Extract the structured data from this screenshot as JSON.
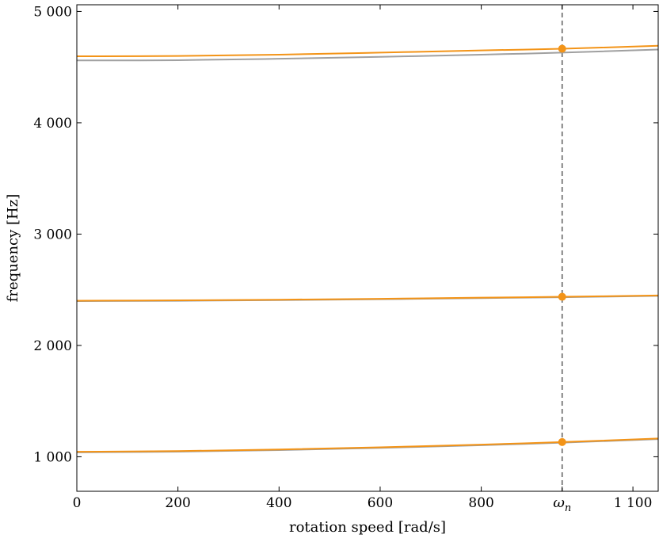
{
  "chart_data": {
    "type": "line",
    "xlabel": "rotation speed [rad/s]",
    "ylabel": "frequency [Hz]",
    "xlim": [
      0,
      1150
    ],
    "ylim": [
      690,
      5060
    ],
    "x_ticks": [
      {
        "value": 0,
        "label": "0"
      },
      {
        "value": 200,
        "label": "200"
      },
      {
        "value": 400,
        "label": "400"
      },
      {
        "value": 600,
        "label": "600"
      },
      {
        "value": 800,
        "label": "800"
      },
      {
        "value": 960,
        "label": "ω",
        "subscript": "n"
      },
      {
        "value": 1100,
        "label": "1 100"
      }
    ],
    "y_ticks": [
      {
        "value": 1000,
        "label": "1 000"
      },
      {
        "value": 2000,
        "label": "2 000"
      },
      {
        "value": 3000,
        "label": "3 000"
      },
      {
        "value": 4000,
        "label": "4 000"
      },
      {
        "value": 5000,
        "label": "5 000"
      }
    ],
    "vertical_line": {
      "x": 960,
      "style": "dashed",
      "color": "#666666"
    },
    "grid": false,
    "colors": {
      "orange": "#f39418",
      "gray": "#a0a0a0"
    },
    "series": [
      {
        "color": "#a0a0a0",
        "x": [
          0,
          200,
          400,
          600,
          800,
          960,
          1150
        ],
        "y": [
          4560,
          4562,
          4575,
          4592,
          4612,
          4630,
          4658
        ]
      },
      {
        "color": "#f39418",
        "x": [
          0,
          200,
          400,
          600,
          800,
          960,
          1150
        ],
        "y": [
          4597,
          4600,
          4612,
          4630,
          4650,
          4665,
          4692
        ]
      },
      {
        "color": "#a0a0a0",
        "x": [
          0,
          200,
          400,
          600,
          800,
          960,
          1150
        ],
        "y": [
          2398,
          2401,
          2407,
          2415,
          2425,
          2433,
          2445
        ]
      },
      {
        "color": "#f39418",
        "x": [
          0,
          200,
          400,
          600,
          800,
          960,
          1150
        ],
        "y": [
          2402,
          2405,
          2411,
          2419,
          2429,
          2437,
          2449
        ]
      },
      {
        "color": "#a0a0a0",
        "x": [
          0,
          200,
          400,
          600,
          800,
          960,
          1150
        ],
        "y": [
          1040,
          1046,
          1060,
          1080,
          1104,
          1127,
          1159
        ]
      },
      {
        "color": "#f39418",
        "x": [
          0,
          200,
          400,
          600,
          800,
          960,
          1150
        ],
        "y": [
          1045,
          1051,
          1065,
          1085,
          1109,
          1132,
          1164
        ]
      }
    ],
    "markers": [
      {
        "x": 960,
        "y": 4665,
        "color": "#f39418"
      },
      {
        "x": 960,
        "y": 2437,
        "color": "#f39418"
      },
      {
        "x": 960,
        "y": 1132,
        "color": "#f39418"
      }
    ]
  }
}
